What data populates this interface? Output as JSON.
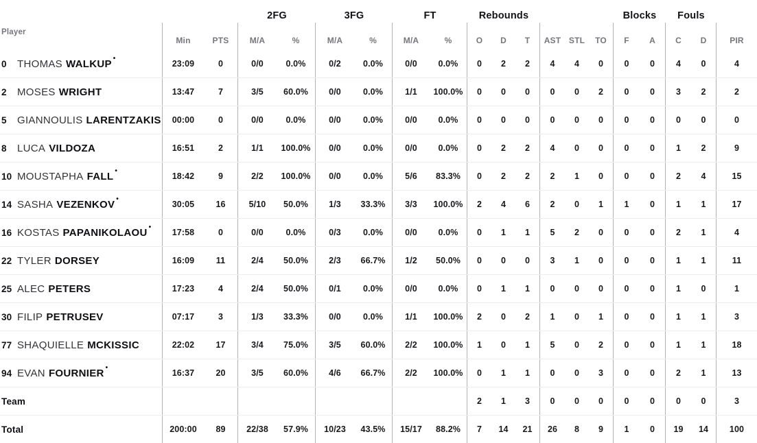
{
  "table": {
    "starter_mark": "•",
    "group_headers": [
      {
        "label": "",
        "cols": 1
      },
      {
        "label": "",
        "cols": 2
      },
      {
        "label": "2FG",
        "cols": 2
      },
      {
        "label": "3FG",
        "cols": 2
      },
      {
        "label": "FT",
        "cols": 2
      },
      {
        "label": "Rebounds",
        "cols": 3
      },
      {
        "label": "",
        "cols": 3
      },
      {
        "label": "Blocks",
        "cols": 2
      },
      {
        "label": "Fouls",
        "cols": 2
      },
      {
        "label": "",
        "cols": 1
      }
    ],
    "sub_headers": [
      "Player",
      "Min",
      "PTS",
      "M/A",
      "%",
      "M/A",
      "%",
      "M/A",
      "%",
      "O",
      "D",
      "T",
      "AST",
      "STL",
      "TO",
      "F",
      "A",
      "C",
      "D",
      "PIR"
    ],
    "rows": [
      {
        "number": "0",
        "first_name": "THOMAS",
        "last_name": "WALKUP",
        "starter": true,
        "stats": [
          "23:09",
          "0",
          "0/0",
          "0.0%",
          "0/2",
          "0.0%",
          "0/0",
          "0.0%",
          "0",
          "2",
          "2",
          "4",
          "4",
          "0",
          "0",
          "0",
          "4",
          "0",
          "4"
        ]
      },
      {
        "number": "2",
        "first_name": "MOSES",
        "last_name": "WRIGHT",
        "starter": false,
        "stats": [
          "13:47",
          "7",
          "3/5",
          "60.0%",
          "0/0",
          "0.0%",
          "1/1",
          "100.0%",
          "0",
          "0",
          "0",
          "0",
          "0",
          "2",
          "0",
          "0",
          "3",
          "2",
          "2"
        ]
      },
      {
        "number": "5",
        "first_name": "GIANNOULIS",
        "last_name": "LARENTZAKIS",
        "starter": false,
        "stats": [
          "00:00",
          "0",
          "0/0",
          "0.0%",
          "0/0",
          "0.0%",
          "0/0",
          "0.0%",
          "0",
          "0",
          "0",
          "0",
          "0",
          "0",
          "0",
          "0",
          "0",
          "0",
          "0"
        ]
      },
      {
        "number": "8",
        "first_name": "LUCA",
        "last_name": "VILDOZA",
        "starter": false,
        "stats": [
          "16:51",
          "2",
          "1/1",
          "100.0%",
          "0/0",
          "0.0%",
          "0/0",
          "0.0%",
          "0",
          "2",
          "2",
          "4",
          "0",
          "0",
          "0",
          "0",
          "1",
          "2",
          "9"
        ]
      },
      {
        "number": "10",
        "first_name": "MOUSTAPHA",
        "last_name": "FALL",
        "starter": true,
        "stats": [
          "18:42",
          "9",
          "2/2",
          "100.0%",
          "0/0",
          "0.0%",
          "5/6",
          "83.3%",
          "0",
          "2",
          "2",
          "2",
          "1",
          "0",
          "0",
          "0",
          "2",
          "4",
          "15"
        ]
      },
      {
        "number": "14",
        "first_name": "SASHA",
        "last_name": "VEZENKOV",
        "starter": true,
        "stats": [
          "30:05",
          "16",
          "5/10",
          "50.0%",
          "1/3",
          "33.3%",
          "3/3",
          "100.0%",
          "2",
          "4",
          "6",
          "2",
          "0",
          "1",
          "1",
          "0",
          "1",
          "1",
          "17"
        ]
      },
      {
        "number": "16",
        "first_name": "KOSTAS",
        "last_name": "PAPANIKOLAOU",
        "starter": true,
        "stats": [
          "17:58",
          "0",
          "0/0",
          "0.0%",
          "0/3",
          "0.0%",
          "0/0",
          "0.0%",
          "0",
          "1",
          "1",
          "5",
          "2",
          "0",
          "0",
          "0",
          "2",
          "1",
          "4"
        ]
      },
      {
        "number": "22",
        "first_name": "TYLER",
        "last_name": "DORSEY",
        "starter": false,
        "stats": [
          "16:09",
          "11",
          "2/4",
          "50.0%",
          "2/3",
          "66.7%",
          "1/2",
          "50.0%",
          "0",
          "0",
          "0",
          "3",
          "1",
          "0",
          "0",
          "0",
          "1",
          "1",
          "11"
        ]
      },
      {
        "number": "25",
        "first_name": "ALEC",
        "last_name": "PETERS",
        "starter": false,
        "stats": [
          "17:23",
          "4",
          "2/4",
          "50.0%",
          "0/1",
          "0.0%",
          "0/0",
          "0.0%",
          "0",
          "1",
          "1",
          "0",
          "0",
          "0",
          "0",
          "0",
          "1",
          "0",
          "1"
        ]
      },
      {
        "number": "30",
        "first_name": "FILIP",
        "last_name": "PETRUSEV",
        "starter": false,
        "stats": [
          "07:17",
          "3",
          "1/3",
          "33.3%",
          "0/0",
          "0.0%",
          "1/1",
          "100.0%",
          "2",
          "0",
          "2",
          "1",
          "0",
          "1",
          "0",
          "0",
          "1",
          "1",
          "3"
        ]
      },
      {
        "number": "77",
        "first_name": "SHAQUIELLE",
        "last_name": "MCKISSIC",
        "starter": false,
        "stats": [
          "22:02",
          "17",
          "3/4",
          "75.0%",
          "3/5",
          "60.0%",
          "2/2",
          "100.0%",
          "1",
          "0",
          "1",
          "5",
          "0",
          "2",
          "0",
          "0",
          "1",
          "1",
          "18"
        ]
      },
      {
        "number": "94",
        "first_name": "EVAN",
        "last_name": "FOURNIER",
        "starter": true,
        "stats": [
          "16:37",
          "20",
          "3/5",
          "60.0%",
          "4/6",
          "66.7%",
          "2/2",
          "100.0%",
          "0",
          "1",
          "1",
          "0",
          "0",
          "3",
          "0",
          "0",
          "2",
          "1",
          "13"
        ]
      },
      {
        "label": "Team",
        "stats": [
          "",
          "",
          "",
          "",
          "",
          "",
          "",
          "",
          "2",
          "1",
          "3",
          "0",
          "0",
          "0",
          "0",
          "0",
          "0",
          "0",
          "3"
        ]
      },
      {
        "label": "Total",
        "stats": [
          "200:00",
          "89",
          "22/38",
          "57.9%",
          "10/23",
          "43.5%",
          "15/17",
          "88.2%",
          "7",
          "14",
          "21",
          "26",
          "8",
          "9",
          "1",
          "0",
          "19",
          "14",
          "100"
        ]
      }
    ]
  }
}
